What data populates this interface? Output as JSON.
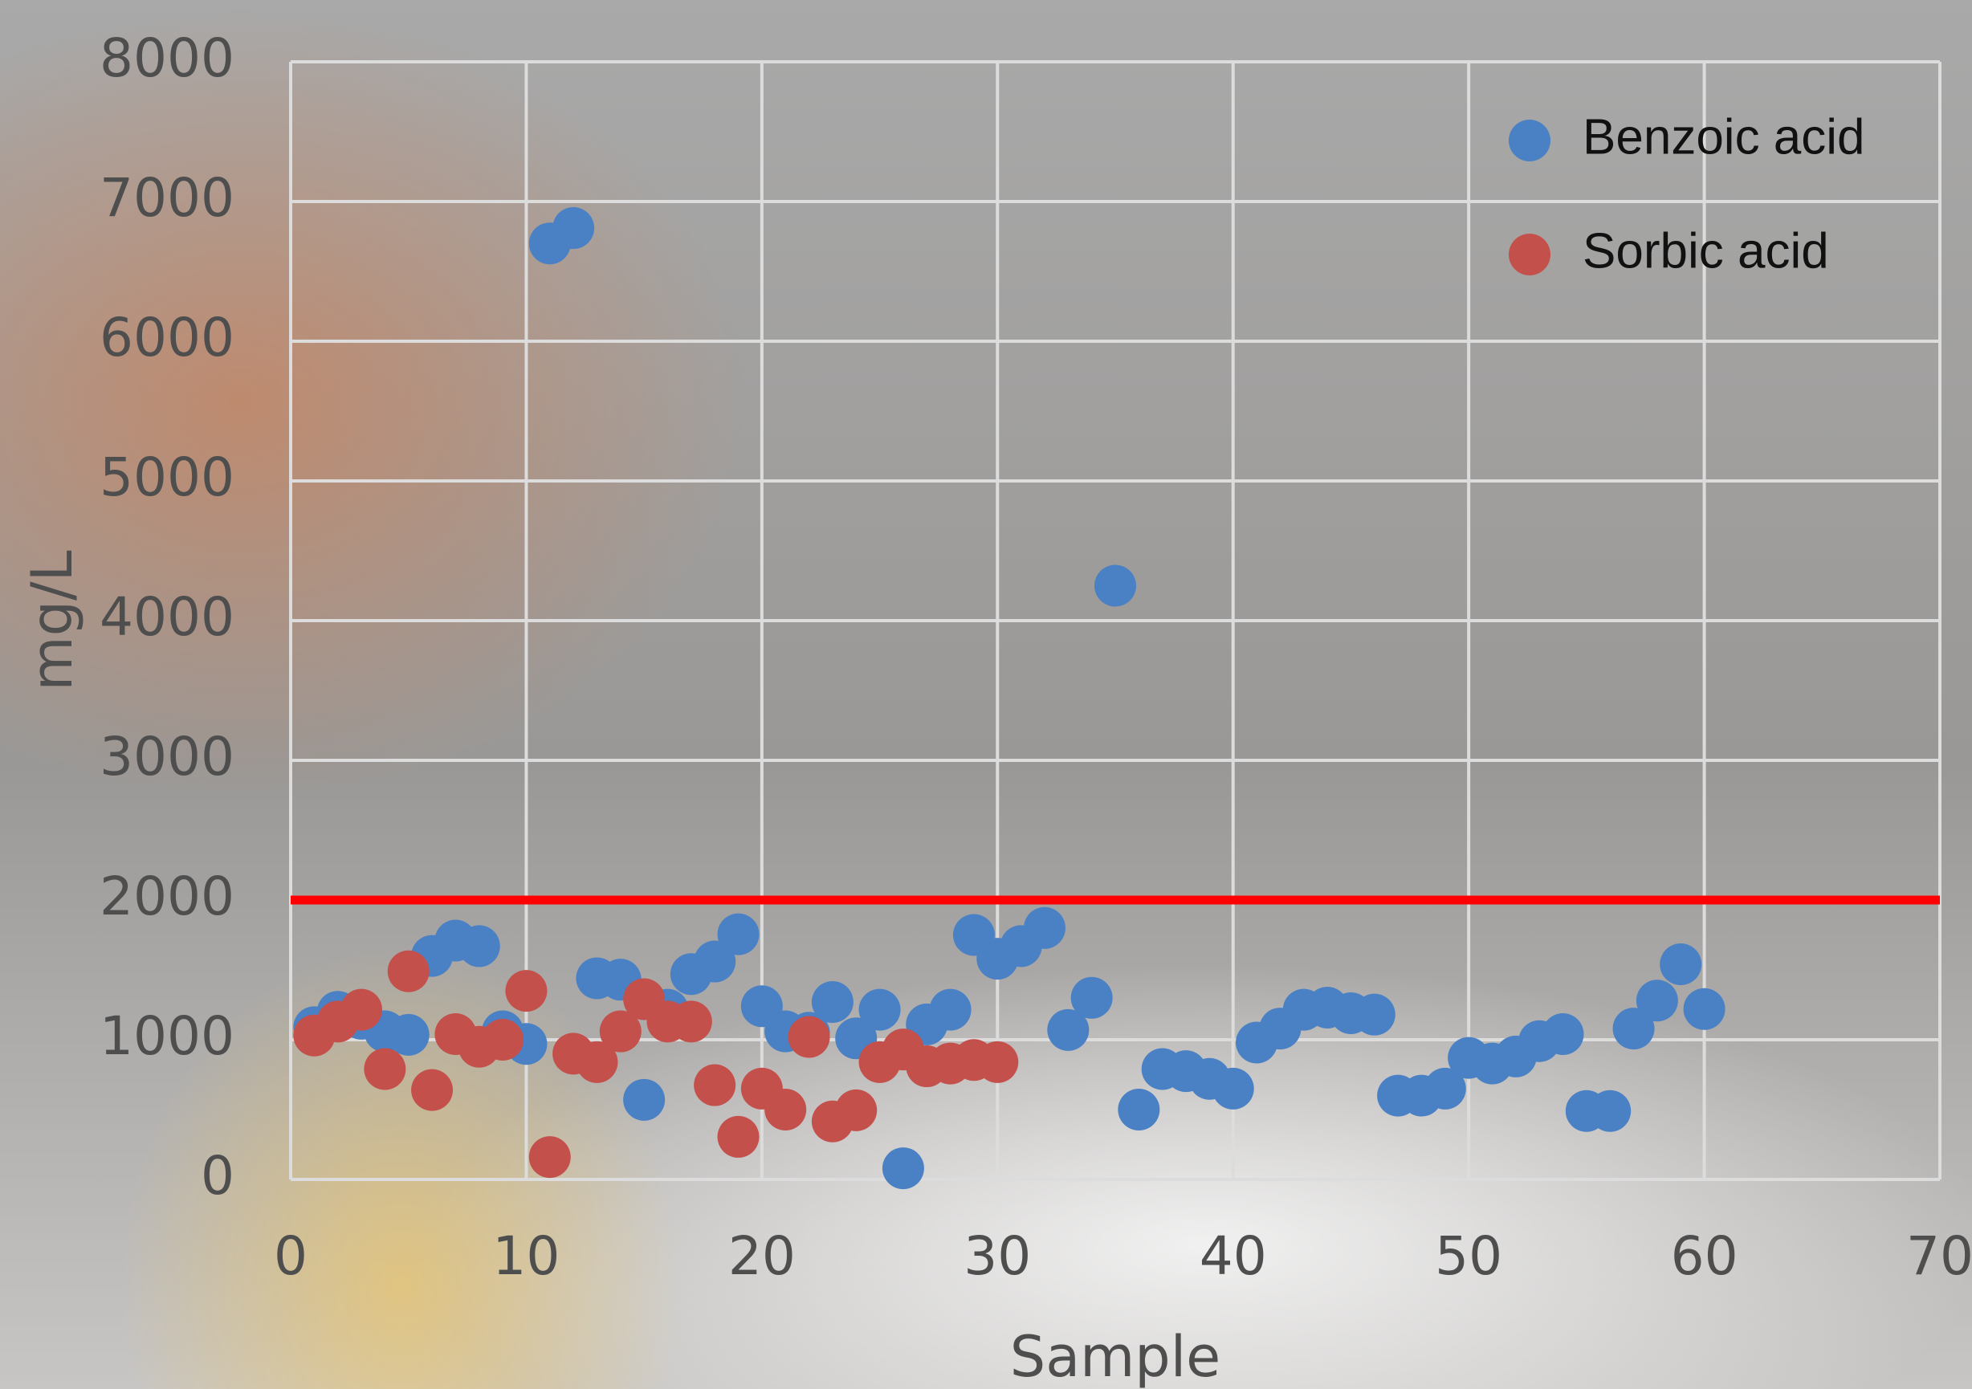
{
  "chart_data": {
    "type": "scatter",
    "xlabel": "Sample",
    "ylabel": "mg/L",
    "xlim": [
      0,
      70
    ],
    "xticks": [
      0,
      10,
      20,
      30,
      40,
      50,
      60,
      70
    ],
    "ylim": [
      0,
      8000
    ],
    "yticks": [
      0,
      1000,
      2000,
      3000,
      4000,
      5000,
      6000,
      7000,
      8000
    ],
    "grid": true,
    "legend": "upper right",
    "hlines": [
      {
        "value": 2000,
        "color": "#ff0000"
      }
    ],
    "series": [
      {
        "name": "Benzoic acid",
        "color": "#4a80c4",
        "x": [
          1,
          2,
          3,
          4,
          5,
          6,
          7,
          8,
          9,
          10,
          11,
          12,
          13,
          14,
          15,
          16,
          17,
          18,
          19,
          20,
          21,
          22,
          23,
          24,
          25,
          26,
          27,
          28,
          29,
          30,
          31,
          32,
          33,
          34,
          35,
          36,
          37,
          38,
          39,
          40,
          41,
          42,
          43,
          44,
          45,
          46,
          47,
          48,
          49,
          50,
          51,
          52,
          53,
          54,
          55,
          56,
          57,
          58,
          59,
          60
        ],
        "values": [
          1090,
          1200,
          1150,
          1060,
          1035,
          1600,
          1710,
          1670,
          1060,
          970,
          6700,
          6810,
          1440,
          1430,
          570,
          1215,
          1470,
          1560,
          1755,
          1240,
          1060,
          1050,
          1270,
          1010,
          1215,
          80,
          1110,
          1215,
          1750,
          1580,
          1670,
          1800,
          1070,
          1300,
          4250,
          500,
          790,
          775,
          720,
          650,
          980,
          1080,
          1215,
          1230,
          1190,
          1180,
          600,
          600,
          650,
          870,
          830,
          880,
          990,
          1040,
          490,
          490,
          1080,
          1280,
          1540,
          1220
        ]
      },
      {
        "name": "Sorbic acid",
        "color": "#c4504c",
        "x": [
          1,
          2,
          3,
          4,
          5,
          6,
          7,
          8,
          9,
          10,
          11,
          12,
          13,
          14,
          15,
          16,
          17,
          18,
          19,
          20,
          21,
          22,
          23,
          24,
          25,
          26,
          27,
          28,
          29,
          30
        ],
        "values": [
          1030,
          1130,
          1215,
          790,
          1490,
          640,
          1040,
          950,
          1000,
          1350,
          160,
          900,
          840,
          1060,
          1290,
          1130,
          1130,
          675,
          305,
          650,
          500,
          1020,
          415,
          495,
          840,
          930,
          810,
          830,
          855,
          840
        ]
      }
    ]
  }
}
